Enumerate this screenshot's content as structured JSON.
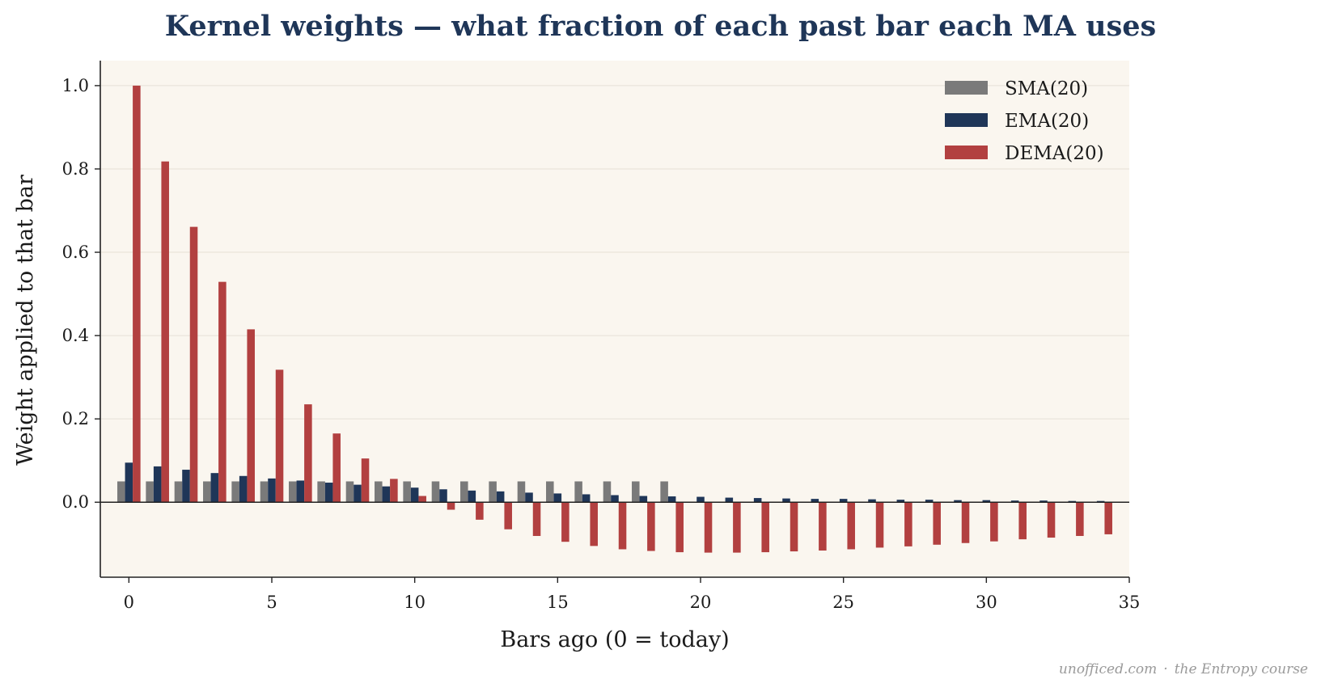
{
  "chart_data": {
    "type": "bar",
    "title": "Kernel weights — what fraction of each past bar each MA uses",
    "xlabel": "Bars ago (0 = today)",
    "ylabel": "Weight applied to that bar",
    "xlim": [
      -1,
      35
    ],
    "ylim": [
      -0.18,
      1.06
    ],
    "xticks": [
      0,
      5,
      10,
      15,
      20,
      25,
      30,
      35
    ],
    "yticks": [
      0.0,
      0.2,
      0.4,
      0.6,
      0.8,
      1.0
    ],
    "ytick_labels": [
      "0.0",
      "0.2",
      "0.4",
      "0.6",
      "0.8",
      "1.0"
    ],
    "grid": "horizontal",
    "legend_position": "top-right",
    "x": [
      0,
      1,
      2,
      3,
      4,
      5,
      6,
      7,
      8,
      9,
      10,
      11,
      12,
      13,
      14,
      15,
      16,
      17,
      18,
      19,
      20,
      21,
      22,
      23,
      24,
      25,
      26,
      27,
      28,
      29,
      30,
      31,
      32,
      33,
      34
    ],
    "series": [
      {
        "name": "SMA(20)",
        "color": "#7a7a7a",
        "values": [
          0.05,
          0.05,
          0.05,
          0.05,
          0.05,
          0.05,
          0.05,
          0.05,
          0.05,
          0.05,
          0.05,
          0.05,
          0.05,
          0.05,
          0.05,
          0.05,
          0.05,
          0.05,
          0.05,
          0.05,
          0,
          0,
          0,
          0,
          0,
          0,
          0,
          0,
          0,
          0,
          0,
          0,
          0,
          0,
          0
        ]
      },
      {
        "name": "EMA(20)",
        "color": "#1f3658",
        "values": [
          0.095,
          0.086,
          0.078,
          0.07,
          0.063,
          0.057,
          0.052,
          0.047,
          0.042,
          0.038,
          0.035,
          0.031,
          0.028,
          0.026,
          0.023,
          0.021,
          0.019,
          0.017,
          0.015,
          0.014,
          0.013,
          0.011,
          0.01,
          0.009,
          0.008,
          0.008,
          0.007,
          0.006,
          0.006,
          0.005,
          0.005,
          0.004,
          0.004,
          0.003,
          0.003
        ]
      },
      {
        "name": "DEMA(20)",
        "color": "#b24040",
        "values": [
          1.0,
          0.818,
          0.661,
          0.529,
          0.415,
          0.318,
          0.235,
          0.165,
          0.105,
          0.056,
          0.015,
          -0.018,
          -0.042,
          -0.065,
          -0.081,
          -0.095,
          -0.105,
          -0.113,
          -0.117,
          -0.12,
          -0.121,
          -0.121,
          -0.12,
          -0.118,
          -0.116,
          -0.113,
          -0.109,
          -0.106,
          -0.102,
          -0.098,
          -0.094,
          -0.089,
          -0.085,
          -0.081,
          -0.077
        ]
      }
    ]
  },
  "footer": {
    "site": "unofficed.com",
    "separator": "·",
    "course": "the Entropy course"
  }
}
